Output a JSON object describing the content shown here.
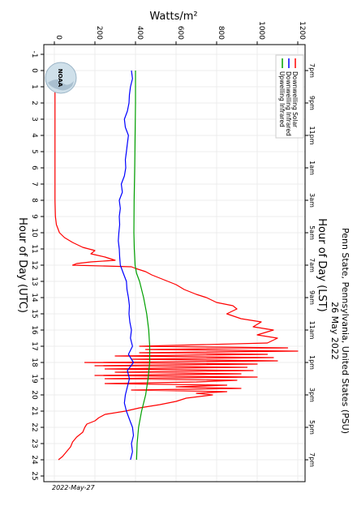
{
  "header": {
    "title_line1": "Penn State, Pennsylvania, United States (PSU)",
    "title_line2": "26 May 2022"
  },
  "footer": {
    "date_stamp": "2022-May-27"
  },
  "logo": {
    "text": "NOAA"
  },
  "chart_data": {
    "type": "line",
    "title": "Penn State, Pennsylvania, United States (PSU) 26 May 2022",
    "ylabel": "Watts/m²",
    "xlabel_bottom": "Hour of Day (UTC)",
    "xlabel_top": "Hour of Day (LST)",
    "ylim": [
      0,
      1200
    ],
    "xlim": [
      -1,
      25
    ],
    "y_ticks": [
      0,
      200,
      400,
      600,
      800,
      1000,
      1200
    ],
    "utc_ticks": [
      -1,
      0,
      1,
      2,
      3,
      4,
      5,
      6,
      7,
      8,
      9,
      10,
      11,
      12,
      13,
      14,
      15,
      16,
      17,
      18,
      19,
      20,
      21,
      22,
      23,
      24,
      25
    ],
    "lst_ticks": [
      {
        "utc": 0,
        "label": "7pm"
      },
      {
        "utc": 2,
        "label": "9pm"
      },
      {
        "utc": 4,
        "label": "11pm"
      },
      {
        "utc": 6,
        "label": "1am"
      },
      {
        "utc": 8,
        "label": "3am"
      },
      {
        "utc": 10,
        "label": "5am"
      },
      {
        "utc": 12,
        "label": "7am"
      },
      {
        "utc": 14,
        "label": "9am"
      },
      {
        "utc": 16,
        "label": "11am"
      },
      {
        "utc": 18,
        "label": "1pm"
      },
      {
        "utc": 20,
        "label": "3pm"
      },
      {
        "utc": 22,
        "label": "5pm"
      },
      {
        "utc": 24,
        "label": "7pm"
      }
    ],
    "grid": true,
    "legend_position": "top-right",
    "series": [
      {
        "name": "Downwelling Solar",
        "color": "#ff0000",
        "x": [
          0,
          0.5,
          1,
          2,
          4,
          6,
          8,
          9,
          9.5,
          10,
          10.3,
          10.6,
          10.9,
          11.1,
          11.3,
          11.5,
          11.7,
          11.8,
          11.9,
          12.0,
          12.1,
          12.2,
          12.4,
          12.6,
          12.8,
          13.0,
          13.2,
          13.5,
          13.8,
          14.0,
          14.3,
          14.5,
          14.7,
          15.0,
          15.3,
          15.5,
          15.8,
          16.0,
          16.3,
          16.5,
          16.8,
          17.0,
          17.1,
          17.2,
          17.3,
          17.4,
          17.5,
          17.6,
          17.7,
          17.8,
          17.9,
          18.0,
          18.1,
          18.2,
          18.3,
          18.4,
          18.5,
          18.6,
          18.7,
          18.8,
          18.9,
          19.0,
          19.1,
          19.2,
          19.3,
          19.4,
          19.5,
          19.6,
          19.7,
          19.8,
          19.9,
          20.0,
          20.2,
          20.4,
          20.6,
          20.8,
          21.0,
          21.2,
          21.4,
          21.6,
          21.8,
          22.0,
          22.3,
          22.6,
          22.9,
          23.2,
          23.5,
          23.8,
          24.0
        ],
        "values": [
          30,
          8,
          3,
          3,
          3,
          3,
          3,
          5,
          10,
          25,
          50,
          90,
          140,
          200,
          180,
          250,
          300,
          180,
          110,
          90,
          380,
          400,
          450,
          480,
          520,
          560,
          600,
          640,
          700,
          750,
          800,
          880,
          900,
          850,
          920,
          1020,
          980,
          1080,
          1000,
          1100,
          1050,
          420,
          1150,
          450,
          1200,
          420,
          1050,
          300,
          1080,
          380,
          1100,
          150,
          1000,
          200,
          950,
          250,
          980,
          300,
          920,
          200,
          1000,
          250,
          900,
          700,
          250,
          850,
          600,
          920,
          380,
          850,
          700,
          780,
          650,
          600,
          520,
          420,
          350,
          250,
          220,
          200,
          160,
          150,
          140,
          110,
          90,
          80,
          60,
          40,
          20
        ]
      },
      {
        "name": "Downwelling Infrared",
        "color": "#0000ff",
        "x": [
          0,
          0.5,
          1,
          1.5,
          2,
          2.5,
          3,
          3.5,
          4,
          4.5,
          5,
          5.5,
          6,
          6.5,
          7,
          7.5,
          8,
          8.5,
          9,
          9.5,
          10,
          10.5,
          11,
          11.5,
          12,
          12.5,
          13,
          13.5,
          14,
          14.5,
          15,
          15.5,
          16,
          16.5,
          17,
          17.5,
          18,
          18.5,
          19,
          19.5,
          20,
          20.5,
          21,
          21.5,
          22,
          22.5,
          23,
          23.5,
          24
        ],
        "values": [
          380,
          385,
          375,
          370,
          368,
          360,
          345,
          350,
          365,
          360,
          355,
          350,
          352,
          345,
          330,
          335,
          320,
          325,
          320,
          322,
          318,
          315,
          320,
          322,
          325,
          340,
          355,
          358,
          365,
          370,
          368,
          372,
          380,
          375,
          385,
          365,
          390,
          360,
          370,
          360,
          350,
          345,
          355,
          370,
          385,
          390,
          380,
          385,
          375
        ]
      },
      {
        "name": "Upwelling Infrared",
        "color": "#00a000",
        "x": [
          0,
          2,
          4,
          6,
          8,
          10,
          11,
          12,
          12.5,
          13,
          14,
          15,
          16,
          17,
          18,
          19,
          20,
          21,
          22,
          23,
          24
        ],
        "values": [
          400,
          400,
          398,
          396,
          393,
          392,
          394,
          398,
          405,
          420,
          440,
          455,
          465,
          470,
          470,
          462,
          450,
          430,
          415,
          408,
          405
        ]
      }
    ]
  }
}
